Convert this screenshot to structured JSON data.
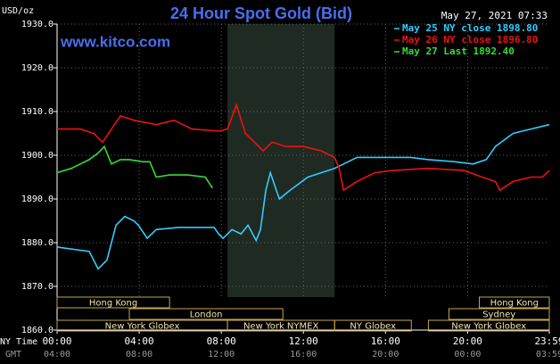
{
  "chart_data": {
    "type": "line",
    "title": "24 Hour Spot Gold (Bid)",
    "subtitle": "www.kitco.com",
    "timestamp": "May 27, 2021 07:33",
    "ylabel": "USD/oz",
    "xlabel": "NY Time",
    "x2label": "GMT",
    "ylim": [
      1860,
      1930
    ],
    "yticks": [
      {
        "value": 1860,
        "label": "1860.0"
      },
      {
        "value": 1870,
        "label": "1870.0"
      },
      {
        "value": 1880,
        "label": "1880.0"
      },
      {
        "value": 1890,
        "label": "1890.0"
      },
      {
        "value": 1900,
        "label": "1900.0"
      },
      {
        "value": 1910,
        "label": "1910.0"
      },
      {
        "value": 1920,
        "label": "1920.0"
      },
      {
        "value": 1930,
        "label": "1930.0"
      }
    ],
    "xlim": [
      0,
      23.98
    ],
    "xticks": [
      {
        "value": 0,
        "label": "00:00"
      },
      {
        "value": 4,
        "label": "04:00"
      },
      {
        "value": 8,
        "label": "08:00"
      },
      {
        "value": 12,
        "label": "12:00"
      },
      {
        "value": 16,
        "label": "16:00"
      },
      {
        "value": 20,
        "label": "20:00"
      },
      {
        "value": 23.98,
        "label": "23:59"
      }
    ],
    "x2ticks": [
      {
        "value": 0,
        "label": "04:00"
      },
      {
        "value": 4,
        "label": "08:00"
      },
      {
        "value": 8,
        "label": "12:00"
      },
      {
        "value": 12,
        "label": "16:00"
      },
      {
        "value": 16,
        "label": "20:00"
      },
      {
        "value": 20,
        "label": "00:00"
      },
      {
        "value": 23.98,
        "label": "03:59"
      }
    ],
    "grid": true,
    "series": [
      {
        "name": "May 25 NY close 1898.80",
        "color": "#33ccff",
        "x": [
          0,
          1.57,
          2,
          2.43,
          2.87,
          3.3,
          3.74,
          3.96,
          4.39,
          4.83,
          5.91,
          7.65,
          7.87,
          8.09,
          8.52,
          8.96,
          9.3,
          9.7,
          9.91,
          10.17,
          10.39,
          10.83,
          11.35,
          12.22,
          12.87,
          13.52,
          13.96,
          14.61,
          15.48,
          17.22,
          18.09,
          19.39,
          20.26,
          20.91,
          21.35,
          22.22,
          23.09,
          23.98
        ],
        "values": [
          1879,
          1878,
          1874,
          1876,
          1884,
          1886,
          1885,
          1884,
          1881,
          1883,
          1883.5,
          1883.5,
          1882,
          1881,
          1883,
          1882,
          1884,
          1880.5,
          1883,
          1892,
          1896,
          1890,
          1892,
          1895,
          1896,
          1897,
          1898,
          1899.5,
          1899.5,
          1899.5,
          1899,
          1898.5,
          1898,
          1899,
          1902,
          1905,
          1906,
          1907
        ]
      },
      {
        "name": "May 26 NY close 1896.80",
        "color": "#ee1111",
        "x": [
          0,
          1.13,
          1.78,
          2.22,
          2.65,
          3.09,
          3.74,
          4.83,
          5.7,
          6.57,
          7.87,
          8.3,
          8.74,
          9.17,
          9.61,
          10.04,
          10.48,
          11.13,
          12,
          12.87,
          13.52,
          13.74,
          13.96,
          14.61,
          15.48,
          16.35,
          18.09,
          19.83,
          20.7,
          21.35,
          21.57,
          22.22,
          23.09,
          23.65,
          23.98
        ],
        "values": [
          1906,
          1906,
          1905,
          1903,
          1906,
          1909,
          1908,
          1907,
          1908,
          1906,
          1905.5,
          1906,
          1911.5,
          1905,
          1903,
          1901,
          1903,
          1902,
          1902,
          1901,
          1899.5,
          1897,
          1892,
          1894,
          1896,
          1896.5,
          1897,
          1896.5,
          1895,
          1894,
          1892,
          1894,
          1895,
          1895,
          1896.5
        ]
      },
      {
        "name": "May 27 Last 1892.40",
        "color": "#33dd33",
        "x": [
          0,
          0.7,
          1.13,
          1.57,
          2,
          2.3,
          2.65,
          3.09,
          3.52,
          4.17,
          4.52,
          4.83,
          5.48,
          6.35,
          7.22,
          7.57
        ],
        "values": [
          1896,
          1897,
          1898,
          1899,
          1900.5,
          1902,
          1898,
          1899,
          1899,
          1898.5,
          1898.5,
          1895,
          1895.5,
          1895.5,
          1895,
          1892.5
        ]
      }
    ],
    "session_rows": [
      [
        {
          "label": "Hong Kong",
          "start": 0,
          "end": 5.48
        },
        {
          "label": "Hong Kong",
          "start": 20.57,
          "end": 23.98
        }
      ],
      [
        {
          "label": "London",
          "start": 3.52,
          "end": 11.0
        },
        {
          "label": "Sydney",
          "start": 19.09,
          "end": 23.98
        }
      ],
      [
        {
          "label": "New York Globex",
          "start": 0,
          "end": 8.3
        },
        {
          "label": "New York NYMEX",
          "start": 8.3,
          "end": 13.52
        },
        {
          "label": "NY Globex",
          "start": 13.52,
          "end": 17.26
        },
        {
          "label": "New York Globex",
          "start": 18.09,
          "end": 23.98
        }
      ]
    ]
  }
}
